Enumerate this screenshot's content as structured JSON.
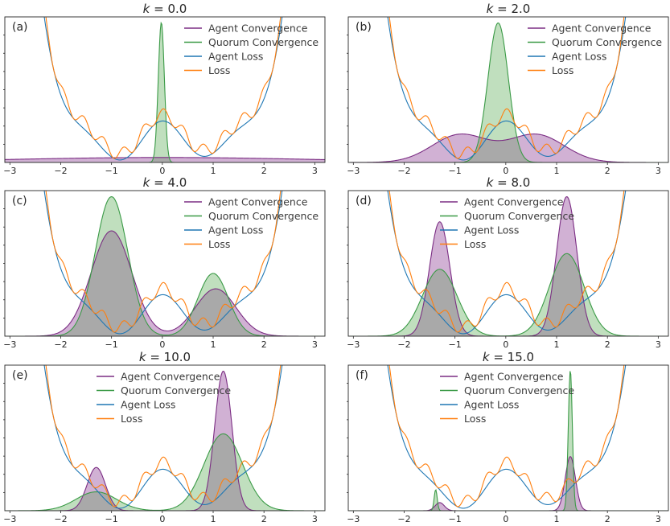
{
  "chart_data": [
    {
      "type": "area",
      "panel": "(a)",
      "title": "k = 0.0",
      "title_k": "k",
      "title_value": "= 0.0",
      "xlim": [
        -3.1,
        3.2
      ],
      "xticks": [
        -3,
        -2,
        -1,
        0,
        1,
        2,
        3
      ],
      "legend": [
        "Agent Convergence",
        "Quorum Convergence",
        "Agent Loss",
        "Loss"
      ],
      "legend_position": "top-right",
      "series": [
        {
          "name": "Agent Convergence",
          "kind": "density",
          "components": [
            {
              "mu": 0.0,
              "sigma": 3.0,
              "w": 1.0
            }
          ],
          "peak_fraction": 0.035
        },
        {
          "name": "Quorum Convergence",
          "kind": "density",
          "components": [
            {
              "mu": -0.02,
              "sigma": 0.06,
              "w": 1.0
            }
          ],
          "peak_fraction": 0.98
        }
      ]
    },
    {
      "type": "area",
      "panel": "(b)",
      "title": "k = 2.0",
      "title_k": "k",
      "title_value": "= 2.0",
      "xlim": [
        -3.1,
        3.2
      ],
      "xticks": [
        -3,
        -2,
        -1,
        0,
        1,
        2,
        3
      ],
      "legend": [
        "Agent Convergence",
        "Quorum Convergence",
        "Agent Loss",
        "Loss"
      ],
      "legend_position": "top-right",
      "series": [
        {
          "name": "Agent Convergence",
          "kind": "density",
          "components": [
            {
              "mu": -0.9,
              "sigma": 0.55,
              "w": 0.5
            },
            {
              "mu": 0.6,
              "sigma": 0.55,
              "w": 0.5
            }
          ],
          "peak_fraction": 0.2
        },
        {
          "name": "Quorum Convergence",
          "kind": "density",
          "components": [
            {
              "mu": -0.15,
              "sigma": 0.2,
              "w": 1.0
            }
          ],
          "peak_fraction": 0.98
        }
      ]
    },
    {
      "type": "area",
      "panel": "(c)",
      "title": "k = 4.0",
      "title_k": "k",
      "title_value": "= 4.0",
      "xlim": [
        -3.1,
        3.2
      ],
      "xticks": [
        -3,
        -2,
        -1,
        0,
        1,
        2,
        3
      ],
      "legend": [
        "Agent Convergence",
        "Quorum Convergence",
        "Agent Loss",
        "Loss"
      ],
      "legend_position": "top-right",
      "series": [
        {
          "name": "Agent Convergence",
          "kind": "density",
          "components": [
            {
              "mu": -1.0,
              "sigma": 0.4,
              "w": 0.6
            },
            {
              "mu": 1.05,
              "sigma": 0.4,
              "w": 0.27
            }
          ],
          "peak_fraction": 0.74
        },
        {
          "name": "Quorum Convergence",
          "kind": "density",
          "components": [
            {
              "mu": -1.0,
              "sigma": 0.32,
              "w": 0.6
            },
            {
              "mu": 1.0,
              "sigma": 0.3,
              "w": 0.27
            }
          ],
          "peak_fraction": 0.98
        }
      ]
    },
    {
      "type": "area",
      "panel": "(d)",
      "title": "k = 8.0",
      "title_k": "k",
      "title_value": "= 8.0",
      "xlim": [
        -3.1,
        3.2
      ],
      "xticks": [
        -3,
        -2,
        -1,
        0,
        1,
        2,
        3
      ],
      "legend": [
        "Agent Convergence",
        "Quorum Convergence",
        "Agent Loss",
        "Loss"
      ],
      "legend_position": "top-left",
      "series": [
        {
          "name": "Agent Convergence",
          "kind": "density",
          "components": [
            {
              "mu": -1.3,
              "sigma": 0.2,
              "w": 0.5
            },
            {
              "mu": 1.2,
              "sigma": 0.2,
              "w": 0.61
            }
          ],
          "peak_fraction": 0.98
        },
        {
          "name": "Quorum Convergence",
          "kind": "density",
          "components": [
            {
              "mu": -1.3,
              "sigma": 0.34,
              "w": 0.47
            },
            {
              "mu": 1.2,
              "sigma": 0.34,
              "w": 0.58
            }
          ],
          "peak_fraction": 0.58
        }
      ]
    },
    {
      "type": "area",
      "panel": "(e)",
      "title": "k = 10.0",
      "title_k": "k",
      "title_value": "= 10.0",
      "xlim": [
        -3.1,
        3.2
      ],
      "xticks": [
        -3,
        -2,
        -1,
        0,
        1,
        2,
        3
      ],
      "legend": [
        "Agent Convergence",
        "Quorum Convergence",
        "Agent Loss",
        "Loss"
      ],
      "legend_position": "top-center",
      "series": [
        {
          "name": "Agent Convergence",
          "kind": "density",
          "components": [
            {
              "mu": -1.3,
              "sigma": 0.18,
              "w": 0.31
            },
            {
              "mu": 1.2,
              "sigma": 0.17,
              "w": 1.0
            }
          ],
          "peak_fraction": 0.98
        },
        {
          "name": "Quorum Convergence",
          "kind": "density",
          "components": [
            {
              "mu": -1.3,
              "sigma": 0.4,
              "w": 0.14
            },
            {
              "mu": 1.2,
              "sigma": 0.38,
              "w": 0.57
            }
          ],
          "peak_fraction": 0.54
        }
      ]
    },
    {
      "type": "area",
      "panel": "(f)",
      "title": "k = 15.0",
      "title_k": "k",
      "title_value": "= 15.0",
      "xlim": [
        -3.1,
        3.2
      ],
      "xticks": [
        -3,
        -2,
        -1,
        0,
        1,
        2,
        3
      ],
      "legend": [
        "Agent Convergence",
        "Quorum Convergence",
        "Agent Loss",
        "Loss"
      ],
      "legend_position": "top-center",
      "series": [
        {
          "name": "Agent Convergence",
          "kind": "density",
          "components": [
            {
              "mu": -1.3,
              "sigma": 0.09,
              "w": 0.09
            },
            {
              "mu": 1.27,
              "sigma": 0.1,
              "w": 0.6
            }
          ],
          "peak_fraction": 0.38
        },
        {
          "name": "Quorum Convergence",
          "kind": "density",
          "components": [
            {
              "mu": -1.38,
              "sigma": 0.03,
              "w": 0.15
            },
            {
              "mu": 1.27,
              "sigma": 0.04,
              "w": 1.0
            }
          ],
          "peak_fraction": 0.98
        }
      ]
    }
  ],
  "colors": {
    "agent_convergence": "#7b2d83",
    "agent_convergence_fill": "#c9a3cc",
    "quorum_convergence": "#3a9a46",
    "quorum_convergence_fill": "#b5d9b3",
    "overlap_fill": "#a9a9a9",
    "agent_loss": "#1f77b4",
    "loss": "#ff7f0e"
  }
}
